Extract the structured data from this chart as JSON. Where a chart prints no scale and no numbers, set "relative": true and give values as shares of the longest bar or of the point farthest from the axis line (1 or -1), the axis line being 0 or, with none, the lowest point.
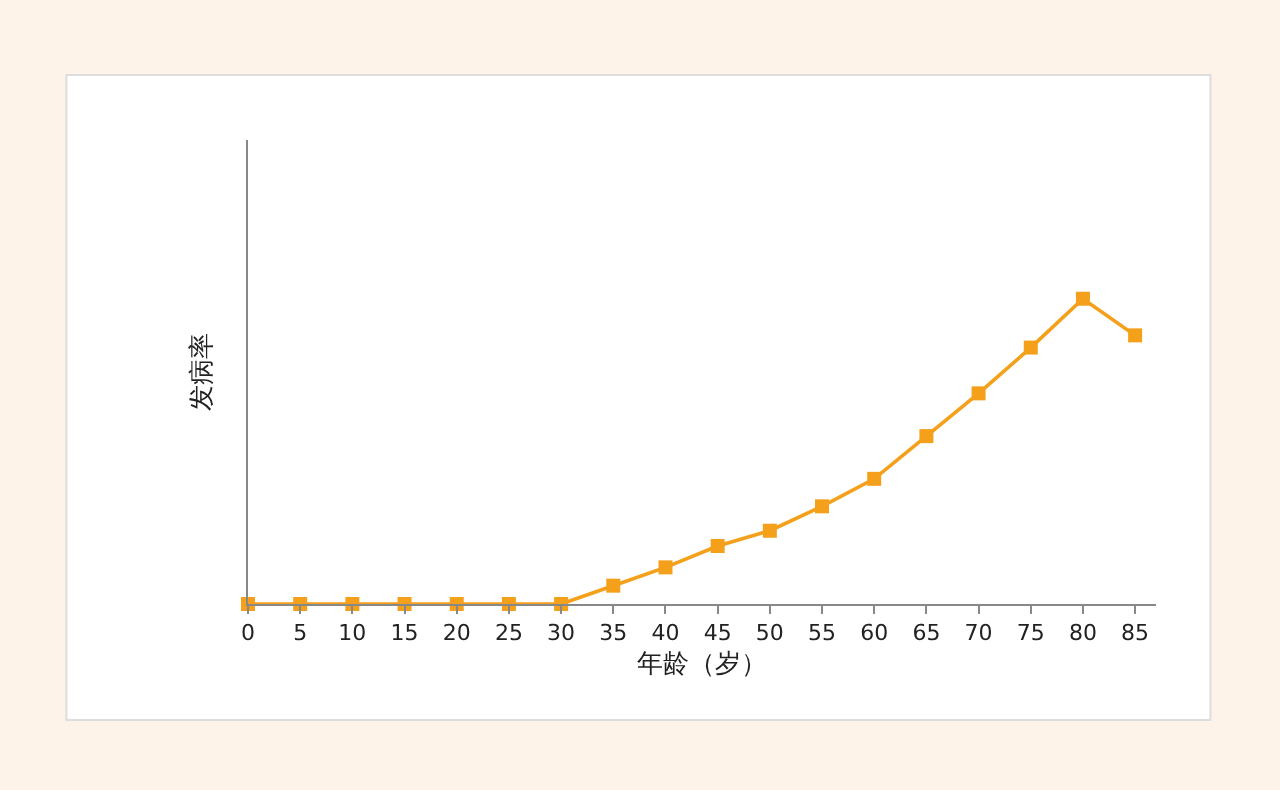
{
  "chart_data": {
    "type": "line",
    "xlabel": "年龄（岁）",
    "ylabel": "发病率",
    "relative": true,
    "x": [
      0,
      5,
      10,
      15,
      20,
      25,
      30,
      35,
      40,
      45,
      50,
      55,
      60,
      65,
      70,
      75,
      80,
      85
    ],
    "xlim": [
      0,
      87
    ],
    "xticks": [
      0,
      5,
      10,
      15,
      20,
      25,
      30,
      35,
      40,
      45,
      50,
      55,
      60,
      65,
      70,
      75,
      80,
      85
    ],
    "series": [
      {
        "color": "#f5a01a",
        "values": [
          0,
          0,
          0,
          0,
          0,
          0,
          0,
          0.06,
          0.12,
          0.19,
          0.24,
          0.32,
          0.41,
          0.55,
          0.69,
          0.84,
          1,
          0.88
        ]
      }
    ],
    "marker": "square",
    "line_style": "solid",
    "legend": false
  }
}
